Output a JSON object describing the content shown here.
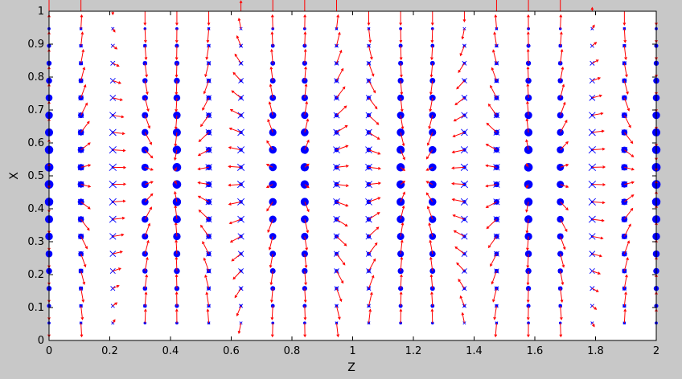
{
  "chart_data": {
    "type": "scatter",
    "variant": "quiver-with-markers",
    "title": "",
    "xlabel": "Z",
    "ylabel": "X",
    "xlim": [
      0,
      2
    ],
    "ylim": [
      0,
      1
    ],
    "xticks": [
      0,
      0.2,
      0.4,
      0.6,
      0.8,
      1,
      1.2,
      1.4,
      1.6,
      1.8,
      2
    ],
    "xtick_labels": [
      "0",
      "0.2",
      "0.4",
      "0.6",
      "0.8",
      "1",
      "1.2",
      "1.4",
      "1.6",
      "1.8",
      "2"
    ],
    "yticks": [
      0,
      0.1,
      0.2,
      0.3,
      0.4,
      0.5,
      0.6,
      0.7,
      0.8,
      0.9,
      1
    ],
    "ytick_labels": [
      "0",
      "0.1",
      "0.2",
      "0.3",
      "0.4",
      "0.5",
      "0.6",
      "0.7",
      "0.8",
      "0.9",
      "1"
    ],
    "grid": false,
    "legend": "none",
    "grid_z": [
      0,
      0.105,
      0.21,
      0.316,
      0.421,
      0.526,
      0.632,
      0.737,
      0.842,
      0.947,
      1.053,
      1.158,
      1.263,
      1.368,
      1.474,
      1.579,
      1.684,
      1.789,
      1.895,
      2
    ],
    "grid_x": [
      0.053,
      0.105,
      0.158,
      0.211,
      0.263,
      0.316,
      0.368,
      0.421,
      0.474,
      0.526,
      0.579,
      0.632,
      0.684,
      0.737,
      0.789,
      0.842,
      0.895,
      0.947,
      1
    ],
    "field": "u = 0.12*sin(pi*X)*sin(2.5*pi*Z), v = -0.12*cos(pi*X)*cos(2.5*pi*Z)",
    "series": [
      {
        "marker": "dot",
        "color": "#0000ff",
        "description_of_size": "|cos(2.5*pi*Z)|*sin(pi*X)"
      },
      {
        "marker": "x",
        "color": "#0000ff",
        "description_of_size": "|sin(2.5*pi*Z)|*sin(pi*X)"
      },
      {
        "marker": "arrow",
        "color": "#ff0000"
      }
    ]
  },
  "colors": {
    "figure_bg": "#c8c8c8",
    "axes_bg": "#ffffff",
    "dot": "#0000ff",
    "cross": "#0000ff",
    "arrow": "#ff0000"
  }
}
